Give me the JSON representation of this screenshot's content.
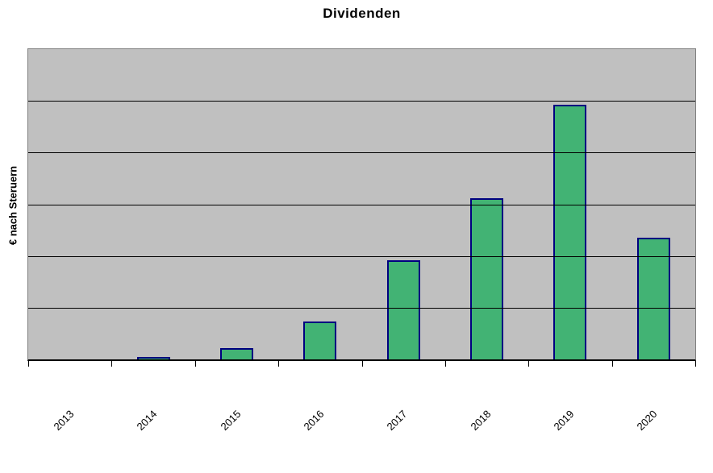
{
  "chart_data": {
    "type": "bar",
    "title": "Dividenden",
    "ylabel": "€ nach Steruern",
    "xlabel": "",
    "categories": [
      "2013",
      "2014",
      "2015",
      "2016",
      "2017",
      "2018",
      "2019",
      "2020"
    ],
    "values": [
      0,
      0.05,
      0.22,
      0.74,
      1.91,
      3.12,
      4.93,
      2.36
    ],
    "ylim": [
      0,
      6
    ],
    "gridline_divisions": 6,
    "y_tick_labels": [],
    "legend": "none",
    "gridlines": "horizontal",
    "colors": {
      "bar_fill": "#42b374",
      "bar_border": "#000080",
      "plot_background": "#c0c0c0",
      "plot_border": "#808080",
      "gridline": "#000000",
      "axis_line": "#000000",
      "text": "#000000",
      "page_background": "#ffffff"
    }
  }
}
